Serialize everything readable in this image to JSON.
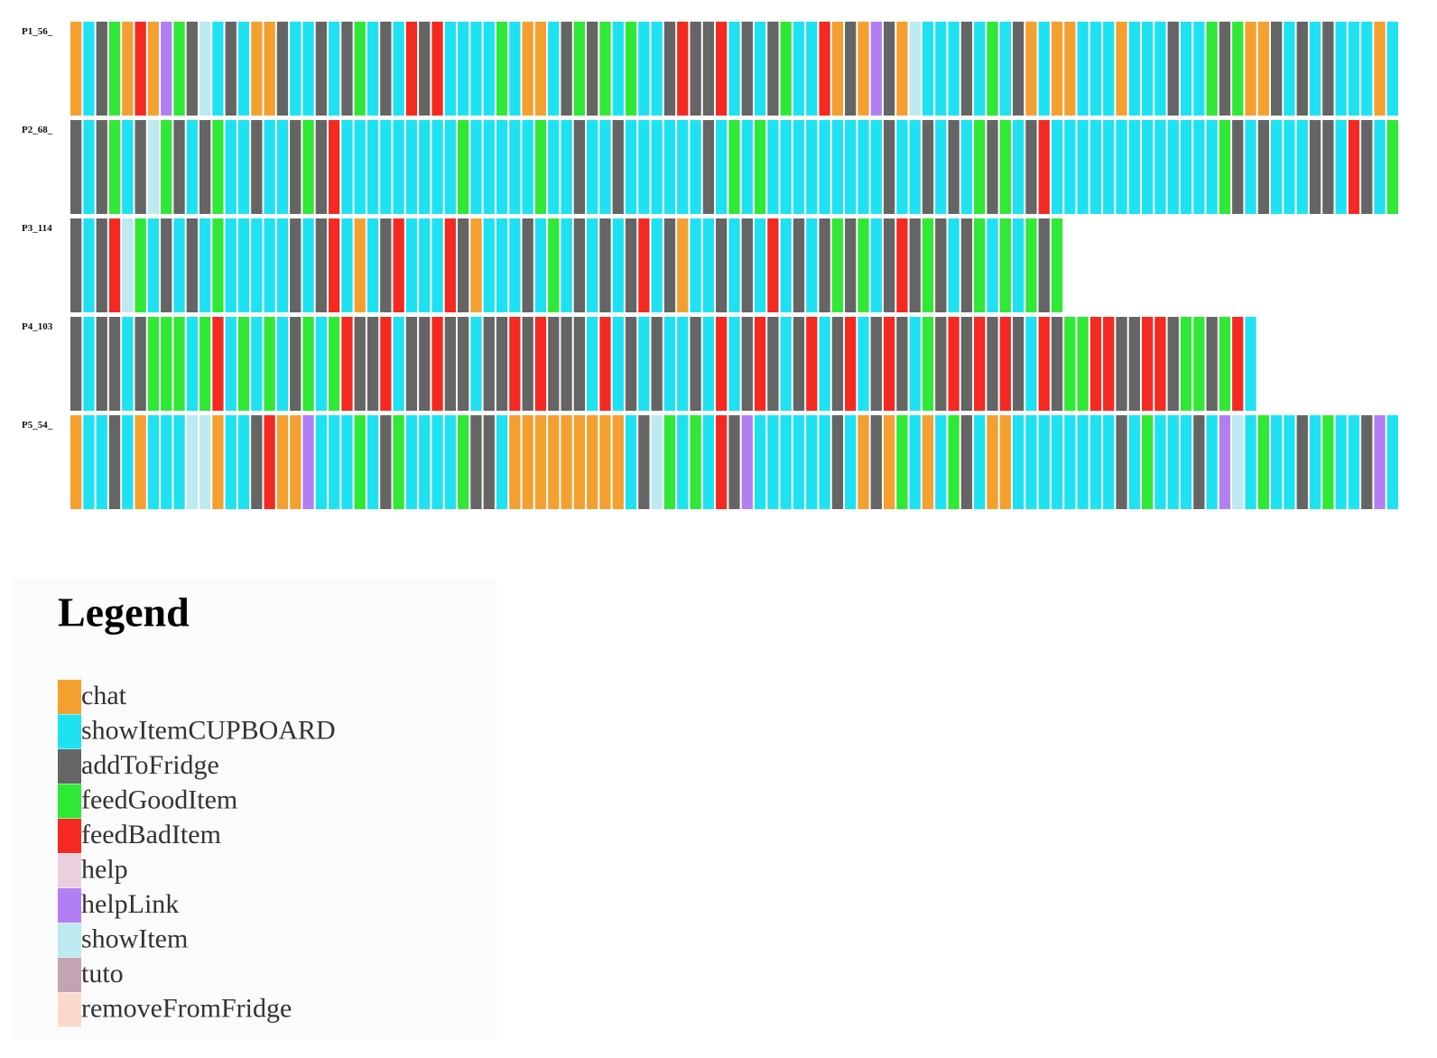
{
  "rows": [
    {
      "label": "P1_56_",
      "events": [
        0,
        1,
        2,
        3,
        0,
        4,
        0,
        6,
        3,
        2,
        7,
        1,
        2,
        1,
        0,
        0,
        2,
        1,
        1,
        2,
        1,
        2,
        3,
        1,
        2,
        1,
        4,
        2,
        4,
        1,
        1,
        1,
        1,
        3,
        1,
        0,
        0,
        1,
        2,
        3,
        2,
        3,
        1,
        3,
        1,
        1,
        2,
        4,
        2,
        2,
        4,
        1,
        2,
        1,
        2,
        3,
        1,
        1,
        4,
        0,
        2,
        0,
        6,
        2,
        0,
        7,
        1,
        1,
        1,
        2,
        1,
        3,
        1,
        2,
        0,
        1,
        0,
        0,
        1,
        1,
        1,
        0,
        1,
        1,
        1,
        2,
        1,
        1,
        3,
        2,
        3,
        0,
        0,
        2,
        1,
        2,
        1,
        2,
        1,
        1,
        1,
        0,
        1
      ]
    },
    {
      "label": "P2_68_",
      "events": [
        2,
        1,
        2,
        3,
        1,
        2,
        7,
        3,
        2,
        1,
        2,
        3,
        1,
        1,
        2,
        1,
        1,
        2,
        3,
        2,
        4,
        1,
        1,
        1,
        1,
        1,
        1,
        1,
        1,
        1,
        3,
        1,
        1,
        1,
        1,
        1,
        3,
        1,
        1,
        2,
        1,
        1,
        2,
        1,
        1,
        1,
        1,
        1,
        1,
        2,
        1,
        3,
        1,
        3,
        1,
        1,
        1,
        1,
        1,
        1,
        1,
        1,
        1,
        2,
        1,
        1,
        2,
        1,
        2,
        1,
        3,
        2,
        3,
        1,
        2,
        4,
        1,
        1,
        1,
        1,
        1,
        1,
        1,
        1,
        1,
        1,
        1,
        1,
        1,
        3,
        2,
        1,
        2,
        1,
        1,
        1,
        2,
        2,
        1,
        4,
        2,
        1,
        3
      ]
    },
    {
      "label": "P3_114",
      "events": [
        2,
        1,
        2,
        4,
        7,
        3,
        1,
        2,
        1,
        2,
        1,
        3,
        1,
        1,
        1,
        1,
        1,
        2,
        1,
        2,
        4,
        1,
        0,
        1,
        2,
        4,
        1,
        1,
        1,
        4,
        2,
        0,
        1,
        1,
        1,
        2,
        1,
        3,
        1,
        2,
        1,
        2,
        1,
        2,
        4,
        1,
        2,
        0,
        1,
        1,
        2,
        1,
        2,
        1,
        4,
        1,
        2,
        1,
        2,
        3,
        2,
        3,
        1,
        2,
        4,
        2,
        3,
        2,
        1,
        2,
        3,
        1,
        3,
        1,
        3,
        2,
        3
      ]
    },
    {
      "label": "P4_103",
      "events": [
        2,
        1,
        2,
        2,
        1,
        2,
        3,
        3,
        3,
        1,
        3,
        4,
        1,
        3,
        1,
        3,
        1,
        2,
        3,
        1,
        3,
        4,
        2,
        2,
        4,
        1,
        2,
        2,
        4,
        2,
        2,
        1,
        2,
        2,
        4,
        2,
        4,
        2,
        2,
        2,
        1,
        4,
        1,
        2,
        1,
        2,
        1,
        1,
        2,
        1,
        4,
        1,
        2,
        4,
        2,
        1,
        2,
        4,
        1,
        2,
        4,
        1,
        2,
        4,
        2,
        1,
        3,
        2,
        4,
        2,
        4,
        2,
        4,
        2,
        1,
        4,
        2,
        3,
        3,
        4,
        4,
        2,
        2,
        4,
        4,
        2,
        3,
        3,
        2,
        3,
        4,
        1
      ]
    },
    {
      "label": "P5_54_",
      "events": [
        0,
        1,
        1,
        2,
        1,
        0,
        1,
        1,
        1,
        7,
        7,
        0,
        1,
        1,
        2,
        4,
        0,
        0,
        6,
        1,
        1,
        1,
        3,
        1,
        2,
        3,
        1,
        1,
        1,
        1,
        3,
        2,
        2,
        1,
        0,
        0,
        0,
        0,
        0,
        0,
        0,
        0,
        0,
        1,
        2,
        7,
        3,
        1,
        3,
        1,
        4,
        2,
        6,
        1,
        1,
        1,
        1,
        1,
        1,
        2,
        1,
        0,
        2,
        0,
        3,
        1,
        0,
        1,
        3,
        2,
        1,
        0,
        0,
        1,
        1,
        1,
        1,
        1,
        1,
        1,
        1,
        2,
        1,
        3,
        1,
        1,
        1,
        2,
        1,
        6,
        7,
        1,
        3,
        1,
        1,
        2,
        1,
        3,
        1,
        1,
        2,
        6,
        1
      ]
    }
  ],
  "legend": {
    "title": "Legend",
    "items": [
      {
        "label": "chat",
        "color": "#f4a030"
      },
      {
        "label": "showItemCUPBOARD",
        "color": "#1ee2f2"
      },
      {
        "label": "addToFridge",
        "color": "#656565"
      },
      {
        "label": "feedGoodItem",
        "color": "#30e836"
      },
      {
        "label": "feedBadItem",
        "color": "#f42a22"
      },
      {
        "label": "help",
        "color": "#ead0dc"
      },
      {
        "label": "helpLink",
        "color": "#b27ff2"
      },
      {
        "label": "showItem",
        "color": "#bde9f1"
      },
      {
        "label": "tuto",
        "color": "#c4a3b4"
      },
      {
        "label": "removeFromFridge",
        "color": "#fcdacb"
      }
    ]
  }
}
